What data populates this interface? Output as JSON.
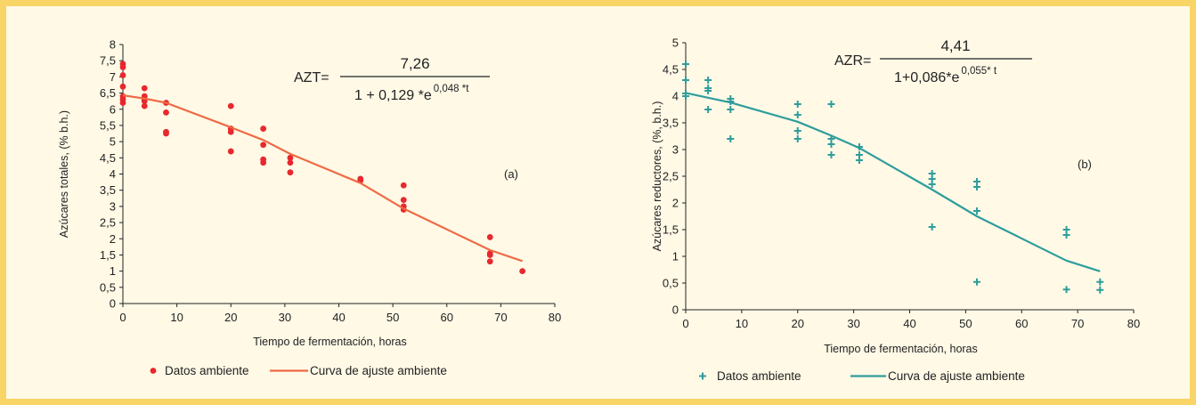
{
  "colors": {
    "frame_border": "#f9d466",
    "background": "#fff9e6",
    "axis": "#222222"
  },
  "chart_data": [
    {
      "type": "scatter",
      "panel_label": "(a)",
      "xlabel": "Tiempo de fermentación, horas",
      "ylabel": "Azúcares totales, (% b.h.)",
      "xlim": [
        0,
        80
      ],
      "ylim": [
        0,
        8
      ],
      "x_ticks": [
        "0",
        "10",
        "20",
        "30",
        "40",
        "50",
        "60",
        "70",
        "80"
      ],
      "y_ticks": [
        "0",
        "0,5",
        "1",
        "1,5",
        "2",
        "2,5",
        "3",
        "3,5",
        "4",
        "4,5",
        "5",
        "5,5",
        "6",
        "6,5",
        "7",
        "7,5",
        "8"
      ],
      "equation": {
        "lhs": "AZT=",
        "numerator": "7,26",
        "denominator": "1 + 0,129 *e",
        "exponent": "0,048 *t"
      },
      "legend": [
        "Datos ambiente",
        "Curva de ajuste ambiente"
      ],
      "grid": false,
      "legend_position": "bottom",
      "series": [
        {
          "name": "Datos ambiente",
          "kind": "points",
          "marker": "dot",
          "color": "#e8282d",
          "points": [
            [
              0,
              7.4
            ],
            [
              0,
              7.3
            ],
            [
              0,
              7.05
            ],
            [
              0,
              6.7
            ],
            [
              0,
              6.4
            ],
            [
              0,
              6.3
            ],
            [
              0,
              6.2
            ],
            [
              4,
              6.65
            ],
            [
              4,
              6.4
            ],
            [
              4,
              6.3
            ],
            [
              4,
              6.25
            ],
            [
              4,
              6.1
            ],
            [
              8,
              6.2
            ],
            [
              8,
              5.9
            ],
            [
              8,
              5.3
            ],
            [
              8,
              5.25
            ],
            [
              20,
              6.1
            ],
            [
              20,
              5.4
            ],
            [
              20,
              5.3
            ],
            [
              20,
              4.7
            ],
            [
              26,
              5.4
            ],
            [
              26,
              4.9
            ],
            [
              26,
              4.45
            ],
            [
              26,
              4.35
            ],
            [
              31,
              4.5
            ],
            [
              31,
              4.35
            ],
            [
              31,
              4.05
            ],
            [
              44,
              3.85
            ],
            [
              44,
              3.8
            ],
            [
              52,
              3.65
            ],
            [
              52,
              3.2
            ],
            [
              52,
              3.0
            ],
            [
              52,
              2.9
            ],
            [
              68,
              2.05
            ],
            [
              68,
              1.55
            ],
            [
              68,
              1.5
            ],
            [
              68,
              1.3
            ],
            [
              74,
              1.0
            ]
          ]
        },
        {
          "name": "Curva de ajuste ambiente",
          "kind": "line",
          "color": "#ef6a45",
          "points": [
            [
              0,
              6.43
            ],
            [
              4,
              6.33
            ],
            [
              8,
              6.2
            ],
            [
              20,
              5.44
            ],
            [
              26,
              5.05
            ],
            [
              31,
              4.62
            ],
            [
              44,
              3.72
            ],
            [
              52,
              2.93
            ],
            [
              68,
              1.65
            ],
            [
              74,
              1.31
            ]
          ]
        }
      ]
    },
    {
      "type": "scatter",
      "panel_label": "(b)",
      "xlabel": "Tiempo de fermentación, horas",
      "ylabel": "Azúcares reductores, (%, b.h.)",
      "xlim": [
        0,
        80
      ],
      "ylim": [
        0,
        5
      ],
      "x_ticks": [
        "0",
        "10",
        "20",
        "30",
        "40",
        "50",
        "60",
        "70",
        "80"
      ],
      "y_ticks": [
        "0",
        "0,5",
        "1",
        "1,5",
        "2",
        "2,5",
        "3",
        "3,5",
        "4",
        "4,5",
        "5"
      ],
      "equation": {
        "lhs": "AZR=",
        "numerator": "4,41",
        "denominator": "1+0,086*e",
        "exponent": "0,055* t"
      },
      "legend": [
        "Datos ambiente",
        "Curva de ajuste ambiente"
      ],
      "grid": false,
      "legend_position": "bottom",
      "series": [
        {
          "name": "Datos ambiente",
          "kind": "points",
          "marker": "plus",
          "color": "#2e9d9c",
          "points": [
            [
              0,
              4.6
            ],
            [
              0,
              4.3
            ],
            [
              0,
              4.05
            ],
            [
              0,
              4.0
            ],
            [
              4,
              4.3
            ],
            [
              4,
              4.15
            ],
            [
              4,
              4.1
            ],
            [
              4,
              3.75
            ],
            [
              8,
              3.95
            ],
            [
              8,
              3.9
            ],
            [
              8,
              3.75
            ],
            [
              8,
              3.2
            ],
            [
              20,
              3.85
            ],
            [
              20,
              3.65
            ],
            [
              20,
              3.35
            ],
            [
              20,
              3.2
            ],
            [
              26,
              3.85
            ],
            [
              26,
              3.2
            ],
            [
              26,
              3.1
            ],
            [
              26,
              2.9
            ],
            [
              31,
              3.05
            ],
            [
              31,
              2.9
            ],
            [
              31,
              2.8
            ],
            [
              44,
              2.55
            ],
            [
              44,
              2.45
            ],
            [
              44,
              2.35
            ],
            [
              44,
              1.55
            ],
            [
              52,
              2.4
            ],
            [
              52,
              2.3
            ],
            [
              52,
              1.85
            ],
            [
              52,
              0.52
            ],
            [
              68,
              1.5
            ],
            [
              68,
              1.4
            ],
            [
              68,
              0.38
            ],
            [
              74,
              0.52
            ],
            [
              74,
              0.37
            ]
          ]
        },
        {
          "name": "Curva de ajuste ambiente",
          "kind": "line",
          "color": "#2e9d9c",
          "points": [
            [
              0,
              4.06
            ],
            [
              8,
              3.88
            ],
            [
              20,
              3.52
            ],
            [
              26,
              3.26
            ],
            [
              31,
              3.03
            ],
            [
              44,
              2.25
            ],
            [
              52,
              1.75
            ],
            [
              68,
              0.92
            ],
            [
              74,
              0.72
            ]
          ]
        }
      ]
    }
  ]
}
